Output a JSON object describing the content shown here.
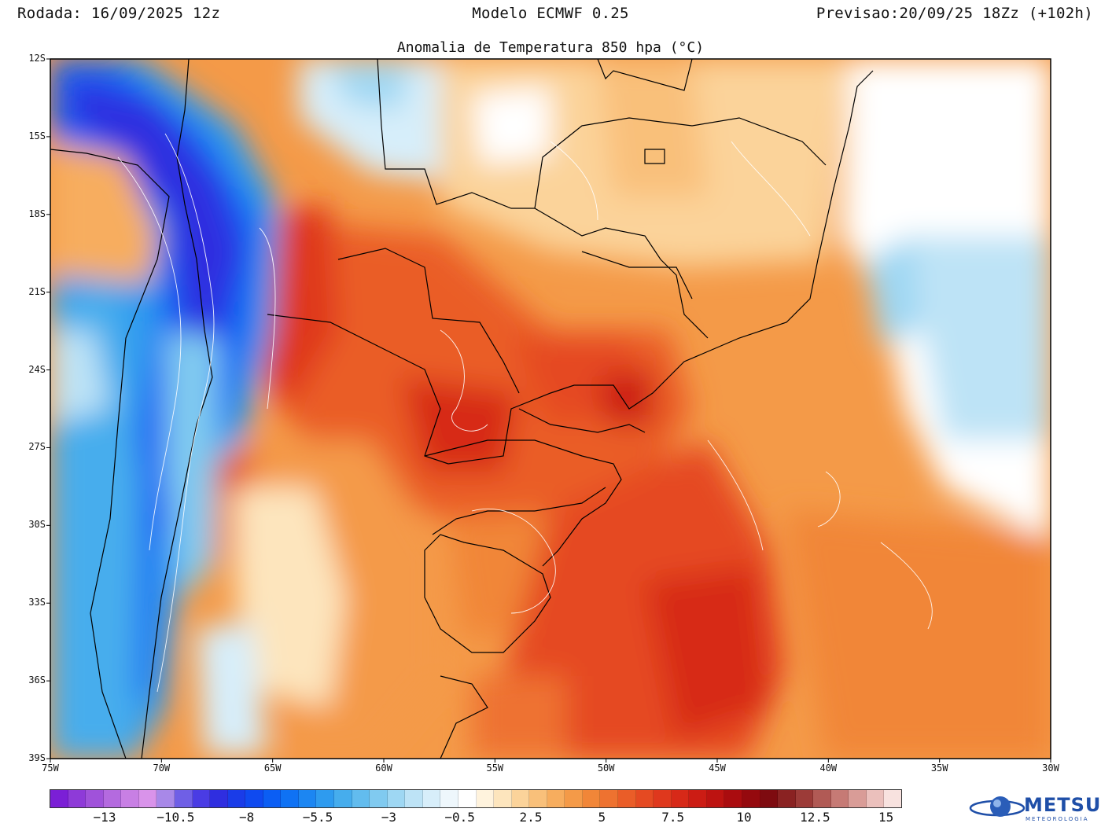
{
  "header": {
    "rodada": "Rodada: 16/09/2025 12z",
    "modelo": "Modelo ECMWF 0.25",
    "previsao": "Previsao:20/09/25 18Zz (+102h)"
  },
  "map": {
    "title": "Anomalia de Temperatura 850 hpa (°C)",
    "lat_labels": [
      "12S",
      "15S",
      "18S",
      "21S",
      "24S",
      "27S",
      "30S",
      "33S",
      "36S",
      "39S"
    ],
    "lon_labels": [
      "75W",
      "70W",
      "65W",
      "60W",
      "55W",
      "50W",
      "45W",
      "40W",
      "35W",
      "30W"
    ],
    "extent": {
      "lon_min": -75,
      "lon_max": -30,
      "lat_min": -39,
      "lat_max": -12
    }
  },
  "colorbar": {
    "labels": [
      "−13",
      "−10.5",
      "−8",
      "−5.5",
      "−3",
      "−0.5",
      "2.5",
      "5",
      "7.5",
      "10",
      "12.5",
      "15"
    ],
    "colors": [
      "#7b1fd6",
      "#8e3ad8",
      "#a052da",
      "#b46adf",
      "#c87fe4",
      "#d993ea",
      "#a888e8",
      "#6f5fe6",
      "#4a3ce4",
      "#2f2ee0",
      "#1a3ce8",
      "#0f4af0",
      "#0b5ef4",
      "#0f72f4",
      "#1c86f2",
      "#2e9bef",
      "#46aded",
      "#62bcee",
      "#80caf0",
      "#9ed7f3",
      "#bde3f6",
      "#d7eefa",
      "#eef7fc",
      "#ffffff",
      "#fff3dd",
      "#fde5bd",
      "#fbd39a",
      "#f9c07a",
      "#f7ad5e",
      "#f49a48",
      "#f18638",
      "#ee7230",
      "#ea5d28",
      "#e54a22",
      "#df381d",
      "#d72918",
      "#cc1c14",
      "#bd1311",
      "#aa0c0f",
      "#95090e",
      "#7e0b10",
      "#8a2222",
      "#9c3b38",
      "#b15a55",
      "#c67a75",
      "#d99c97",
      "#ebc0bc",
      "#f8e2df"
    ],
    "extra": 0
  },
  "logo": {
    "name": "METSUL",
    "subtitle": "METEOROLOGIA"
  }
}
